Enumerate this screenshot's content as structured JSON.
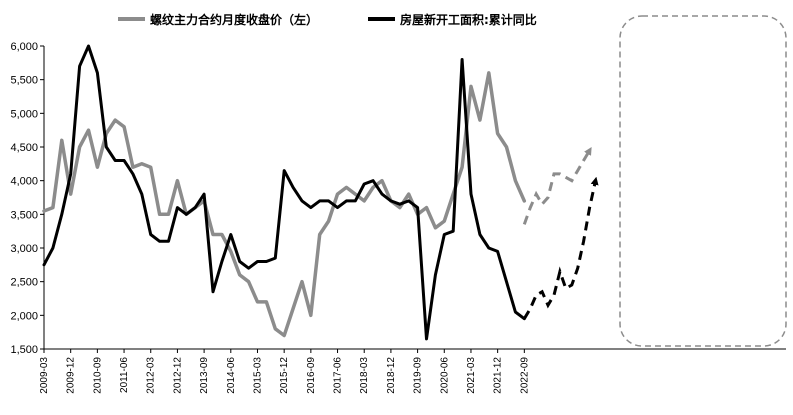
{
  "chart_data": {
    "type": "line",
    "title": "",
    "ylim": [
      1500,
      6000
    ],
    "yticks": [
      "1,500",
      "2,000",
      "2,500",
      "3,000",
      "3,500",
      "4,000",
      "4,500",
      "5,000",
      "5,500",
      "6,000"
    ],
    "xticks": [
      "2009-03",
      "2009-12",
      "2010-09",
      "2011-06",
      "2012-03",
      "2012-12",
      "2013-09",
      "2014-06",
      "2015-03",
      "2015-12",
      "2016-09",
      "2017-06",
      "2018-03",
      "2018-12",
      "2019-09",
      "2020-06",
      "2021-03",
      "2021-12",
      "2022-09"
    ],
    "grid": false,
    "legend": "top",
    "colors": {
      "rebar": "#8c8c8c",
      "housing": "#000000",
      "box": "#8c8c8c"
    },
    "series": [
      {
        "name": "螺纹主力合约月度收盘价（左）",
        "x": [
          "2009-03",
          "2009-06",
          "2009-09",
          "2009-12",
          "2010-03",
          "2010-06",
          "2010-09",
          "2010-12",
          "2011-03",
          "2011-06",
          "2011-09",
          "2011-12",
          "2012-03",
          "2012-06",
          "2012-09",
          "2012-12",
          "2013-03",
          "2013-06",
          "2013-09",
          "2013-12",
          "2014-03",
          "2014-06",
          "2014-09",
          "2014-12",
          "2015-03",
          "2015-06",
          "2015-09",
          "2015-12",
          "2016-03",
          "2016-06",
          "2016-09",
          "2016-12",
          "2017-03",
          "2017-06",
          "2017-09",
          "2017-12",
          "2018-03",
          "2018-06",
          "2018-09",
          "2018-12",
          "2019-03",
          "2019-06",
          "2019-09",
          "2019-12",
          "2020-03",
          "2020-06",
          "2020-09",
          "2020-12",
          "2021-03",
          "2021-06",
          "2021-09",
          "2021-12",
          "2022-03",
          "2022-06",
          "2022-09"
        ],
        "values": [
          3550,
          3600,
          4600,
          3800,
          4500,
          4750,
          4200,
          4700,
          4900,
          4800,
          4200,
          4250,
          4200,
          3500,
          3500,
          4000,
          3500,
          3600,
          3700,
          3200,
          3200,
          2950,
          2600,
          2500,
          2200,
          2200,
          1800,
          1700,
          2100,
          2500,
          2000,
          3200,
          3400,
          3800,
          3900,
          3800,
          3700,
          3900,
          4000,
          3700,
          3600,
          3800,
          3500,
          3600,
          3300,
          3400,
          3800,
          4200,
          5400,
          4900,
          5600,
          4700,
          4500,
          4000,
          3700
        ]
      },
      {
        "name": "房屋新开工面积:累计同比",
        "x": [
          "2009-03",
          "2009-06",
          "2009-09",
          "2009-12",
          "2010-03",
          "2010-06",
          "2010-09",
          "2010-12",
          "2011-03",
          "2011-06",
          "2011-09",
          "2011-12",
          "2012-03",
          "2012-06",
          "2012-09",
          "2012-12",
          "2013-03",
          "2013-06",
          "2013-09",
          "2013-12",
          "2014-03",
          "2014-06",
          "2014-09",
          "2014-12",
          "2015-03",
          "2015-06",
          "2015-09",
          "2015-12",
          "2016-03",
          "2016-06",
          "2016-09",
          "2016-12",
          "2017-03",
          "2017-06",
          "2017-09",
          "2017-12",
          "2018-03",
          "2018-06",
          "2018-09",
          "2018-12",
          "2019-03",
          "2019-06",
          "2019-09",
          "2019-12",
          "2020-03",
          "2020-06",
          "2020-09",
          "2020-12",
          "2021-03",
          "2021-06",
          "2021-09",
          "2021-12",
          "2022-03",
          "2022-06",
          "2022-09"
        ],
        "values": [
          2750,
          3000,
          3500,
          4100,
          5700,
          6000,
          5600,
          4500,
          4300,
          4300,
          4100,
          3800,
          3200,
          3100,
          3100,
          3600,
          3500,
          3600,
          3800,
          2350,
          2800,
          3200,
          2800,
          2700,
          2800,
          2800,
          2850,
          4150,
          3900,
          3700,
          3600,
          3700,
          3700,
          3600,
          3700,
          3700,
          3950,
          4000,
          3800,
          3700,
          3650,
          3700,
          3600,
          1650,
          2600,
          3200,
          3250,
          5800,
          3800,
          3200,
          3000,
          2950,
          2500,
          2050,
          1950
        ]
      }
    ],
    "projections": [
      {
        "series": "螺纹主力合约月度收盘价（左）",
        "style": "dashed-arrow",
        "x_offsets_months": [
          0,
          2,
          4,
          6,
          8,
          10,
          12,
          14,
          16,
          18,
          20,
          22
        ],
        "values": [
          3350,
          3600,
          3800,
          3650,
          3750,
          4100,
          4100,
          4050,
          4000,
          4150,
          4300,
          4450
        ]
      },
      {
        "series": "房屋新开工面积:累计同比",
        "style": "dashed-arrow",
        "x_offsets_months": [
          0,
          2,
          4,
          6,
          8,
          10,
          12,
          14,
          16,
          18,
          20,
          22,
          24
        ],
        "values": [
          1950,
          2100,
          2300,
          2350,
          2150,
          2300,
          2650,
          2400,
          2450,
          2700,
          3100,
          3600,
          4000
        ]
      }
    ],
    "legend_entries": [
      "螺纹主力合约月度收盘价（左）",
      "房屋新开工面积:累计同比"
    ]
  }
}
